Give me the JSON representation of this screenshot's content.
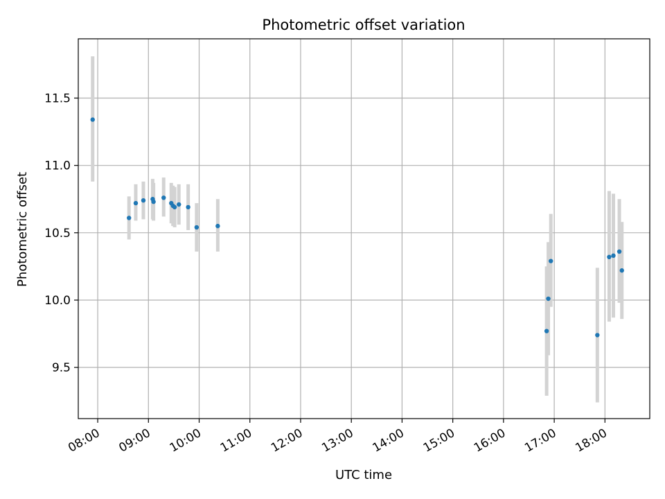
{
  "chart_data": {
    "type": "scatter",
    "title": "Photometric offset variation",
    "xlabel": "UTC time",
    "ylabel": "Photometric offset",
    "xlim": [
      "07:37",
      "18:53"
    ],
    "ylim": [
      9.12,
      11.94
    ],
    "x_ticks": [
      "08:00",
      "09:00",
      "10:00",
      "11:00",
      "12:00",
      "13:00",
      "14:00",
      "15:00",
      "16:00",
      "17:00",
      "18:00"
    ],
    "y_ticks": [
      9.5,
      10.0,
      10.5,
      11.0,
      11.5
    ],
    "y_tick_labels": [
      "9.5",
      "10.0",
      "10.5",
      "11.0",
      "11.5"
    ],
    "grid": true,
    "point_color": "#1f77b4",
    "errorbar_color": "#d3d3d3",
    "points": [
      {
        "t": "07:54",
        "y": 11.34,
        "lo": 10.88,
        "hi": 11.81
      },
      {
        "t": "08:37",
        "y": 10.61,
        "lo": 10.45,
        "hi": 10.77
      },
      {
        "t": "08:45",
        "y": 10.72,
        "lo": 10.59,
        "hi": 10.86
      },
      {
        "t": "08:54",
        "y": 10.74,
        "lo": 10.6,
        "hi": 10.88
      },
      {
        "t": "09:05",
        "y": 10.75,
        "lo": 10.6,
        "hi": 10.9
      },
      {
        "t": "09:06",
        "y": 10.73,
        "lo": 10.59,
        "hi": 10.87
      },
      {
        "t": "09:18",
        "y": 10.76,
        "lo": 10.62,
        "hi": 10.91
      },
      {
        "t": "09:27",
        "y": 10.72,
        "lo": 10.57,
        "hi": 10.87
      },
      {
        "t": "09:29",
        "y": 10.7,
        "lo": 10.55,
        "hi": 10.85
      },
      {
        "t": "09:31",
        "y": 10.69,
        "lo": 10.54,
        "hi": 10.84
      },
      {
        "t": "09:36",
        "y": 10.71,
        "lo": 10.56,
        "hi": 10.86
      },
      {
        "t": "09:47",
        "y": 10.69,
        "lo": 10.52,
        "hi": 10.86
      },
      {
        "t": "09:57",
        "y": 10.54,
        "lo": 10.36,
        "hi": 10.72
      },
      {
        "t": "10:22",
        "y": 10.55,
        "lo": 10.36,
        "hi": 10.75
      },
      {
        "t": "16:51",
        "y": 9.77,
        "lo": 9.29,
        "hi": 10.25
      },
      {
        "t": "16:53",
        "y": 10.01,
        "lo": 9.59,
        "hi": 10.43
      },
      {
        "t": "16:56",
        "y": 10.29,
        "lo": 9.95,
        "hi": 10.64
      },
      {
        "t": "17:51",
        "y": 9.74,
        "lo": 9.24,
        "hi": 10.24
      },
      {
        "t": "18:05",
        "y": 10.32,
        "lo": 9.84,
        "hi": 10.81
      },
      {
        "t": "18:10",
        "y": 10.33,
        "lo": 9.87,
        "hi": 10.79
      },
      {
        "t": "18:17",
        "y": 10.36,
        "lo": 9.98,
        "hi": 10.75
      },
      {
        "t": "18:20",
        "y": 10.22,
        "lo": 9.86,
        "hi": 10.58
      }
    ]
  }
}
